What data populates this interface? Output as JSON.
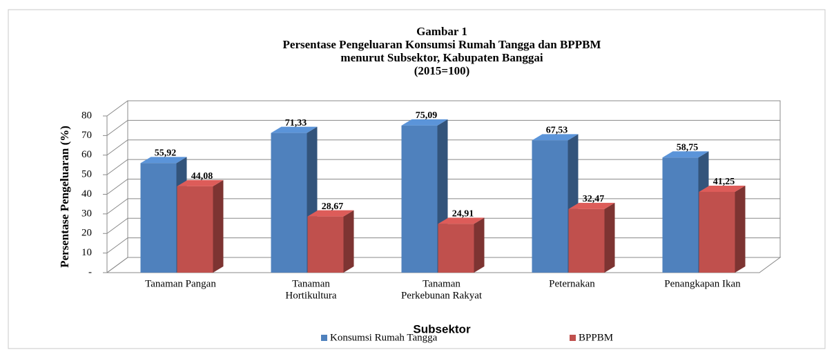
{
  "chart_data": {
    "type": "bar3d",
    "title": [
      "Gambar 1",
      "Persentase Pengeluaran Konsumsi Rumah Tangga dan BPPBM",
      "menurut Subsektor, Kabupaten Banggai",
      "(2015=100)"
    ],
    "x_label": "Subsektor",
    "y_label": "Persentase Pengeluaran (%)",
    "categories": [
      [
        "Tanaman Pangan"
      ],
      [
        "Tanaman",
        "Hortikultura"
      ],
      [
        "Tanaman",
        "Perkebunan Rakyat"
      ],
      [
        "Peternakan"
      ],
      [
        "Penangkapan Ikan"
      ]
    ],
    "series": [
      {
        "name": "Konsumsi Rumah Tangga",
        "color": "#4f81bd",
        "values": [
          55.92,
          71.33,
          75.09,
          67.53,
          58.75
        ],
        "value_labels": [
          "55,92",
          "71,33",
          "75,09",
          "67,53",
          "58,75"
        ]
      },
      {
        "name": "BPPBM",
        "color": "#c0504d",
        "values": [
          44.08,
          28.67,
          24.91,
          32.47,
          41.25
        ],
        "value_labels": [
          "44,08",
          "28,67",
          "24,91",
          "32,47",
          "41,25"
        ]
      }
    ],
    "ylim": [
      0,
      80
    ],
    "yticks": [
      {
        "value": 0,
        "label": "-"
      },
      10,
      20,
      30,
      40,
      50,
      60,
      70,
      80
    ],
    "grid": true,
    "legend": "bottom"
  }
}
